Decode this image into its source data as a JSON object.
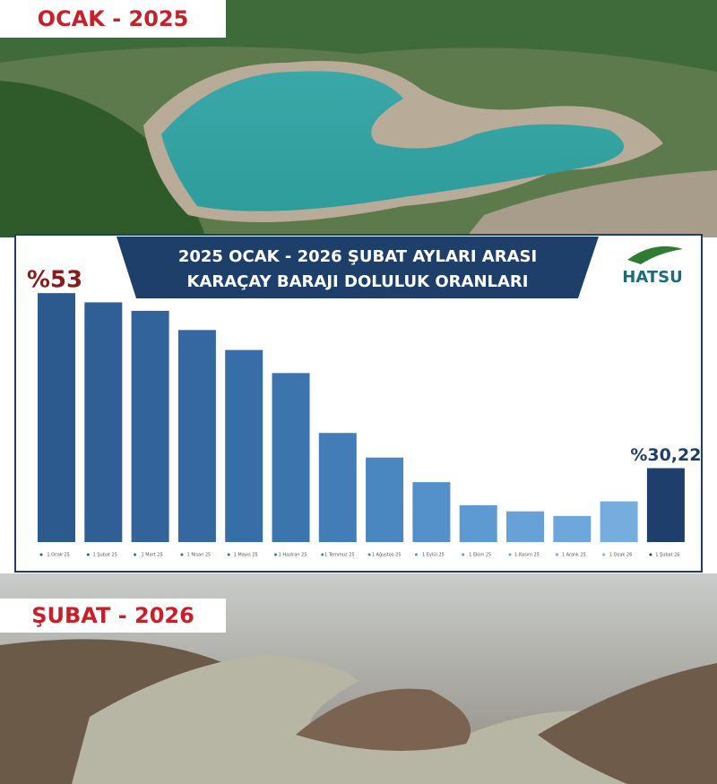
{
  "photo_labels": [
    "OCAK - 2025",
    "ŞUBAT - 2026"
  ],
  "logo": "HATSU",
  "chart_data": {
    "type": "bar",
    "title": [
      "2025 OCAK - 2026 ŞUBAT AYLARI ARASI",
      "KARAÇAY BARAJI DOLULUK ORANLARI"
    ],
    "categories": [
      "1 Ocak 25",
      "1 Şubat 25",
      "1 Mart 25",
      "1 Nisan 25",
      "1 Mayıs 25",
      "1 Haziran 25",
      "1 Temmuz 25",
      "1 Ağustos 25",
      "1 Eylül 25",
      "1 Ekim 25",
      "1 Kasım 25",
      "1 Aralık 25",
      "1 Ocak 26",
      "1 Şubat 26"
    ],
    "values": [
      53,
      51.8,
      50.7,
      48.2,
      45.6,
      42.6,
      34.8,
      31.6,
      28.4,
      25.4,
      24.6,
      24.0,
      25.9,
      30.22
    ],
    "value_labels": [
      "%53",
      null,
      null,
      null,
      null,
      null,
      null,
      null,
      null,
      null,
      null,
      null,
      null,
      "%30,22"
    ],
    "colors": [
      "#2c5a8e",
      "#2f5f95",
      "#32649b",
      "#3568a1",
      "#386ea8",
      "#3c74ae",
      "#437db7",
      "#4a86c0",
      "#5491ca",
      "#5e9ad2",
      "#66a1d7",
      "#6da7dc",
      "#75addf",
      "#1e3f6b"
    ],
    "ylim": [
      20.6,
      55
    ]
  }
}
